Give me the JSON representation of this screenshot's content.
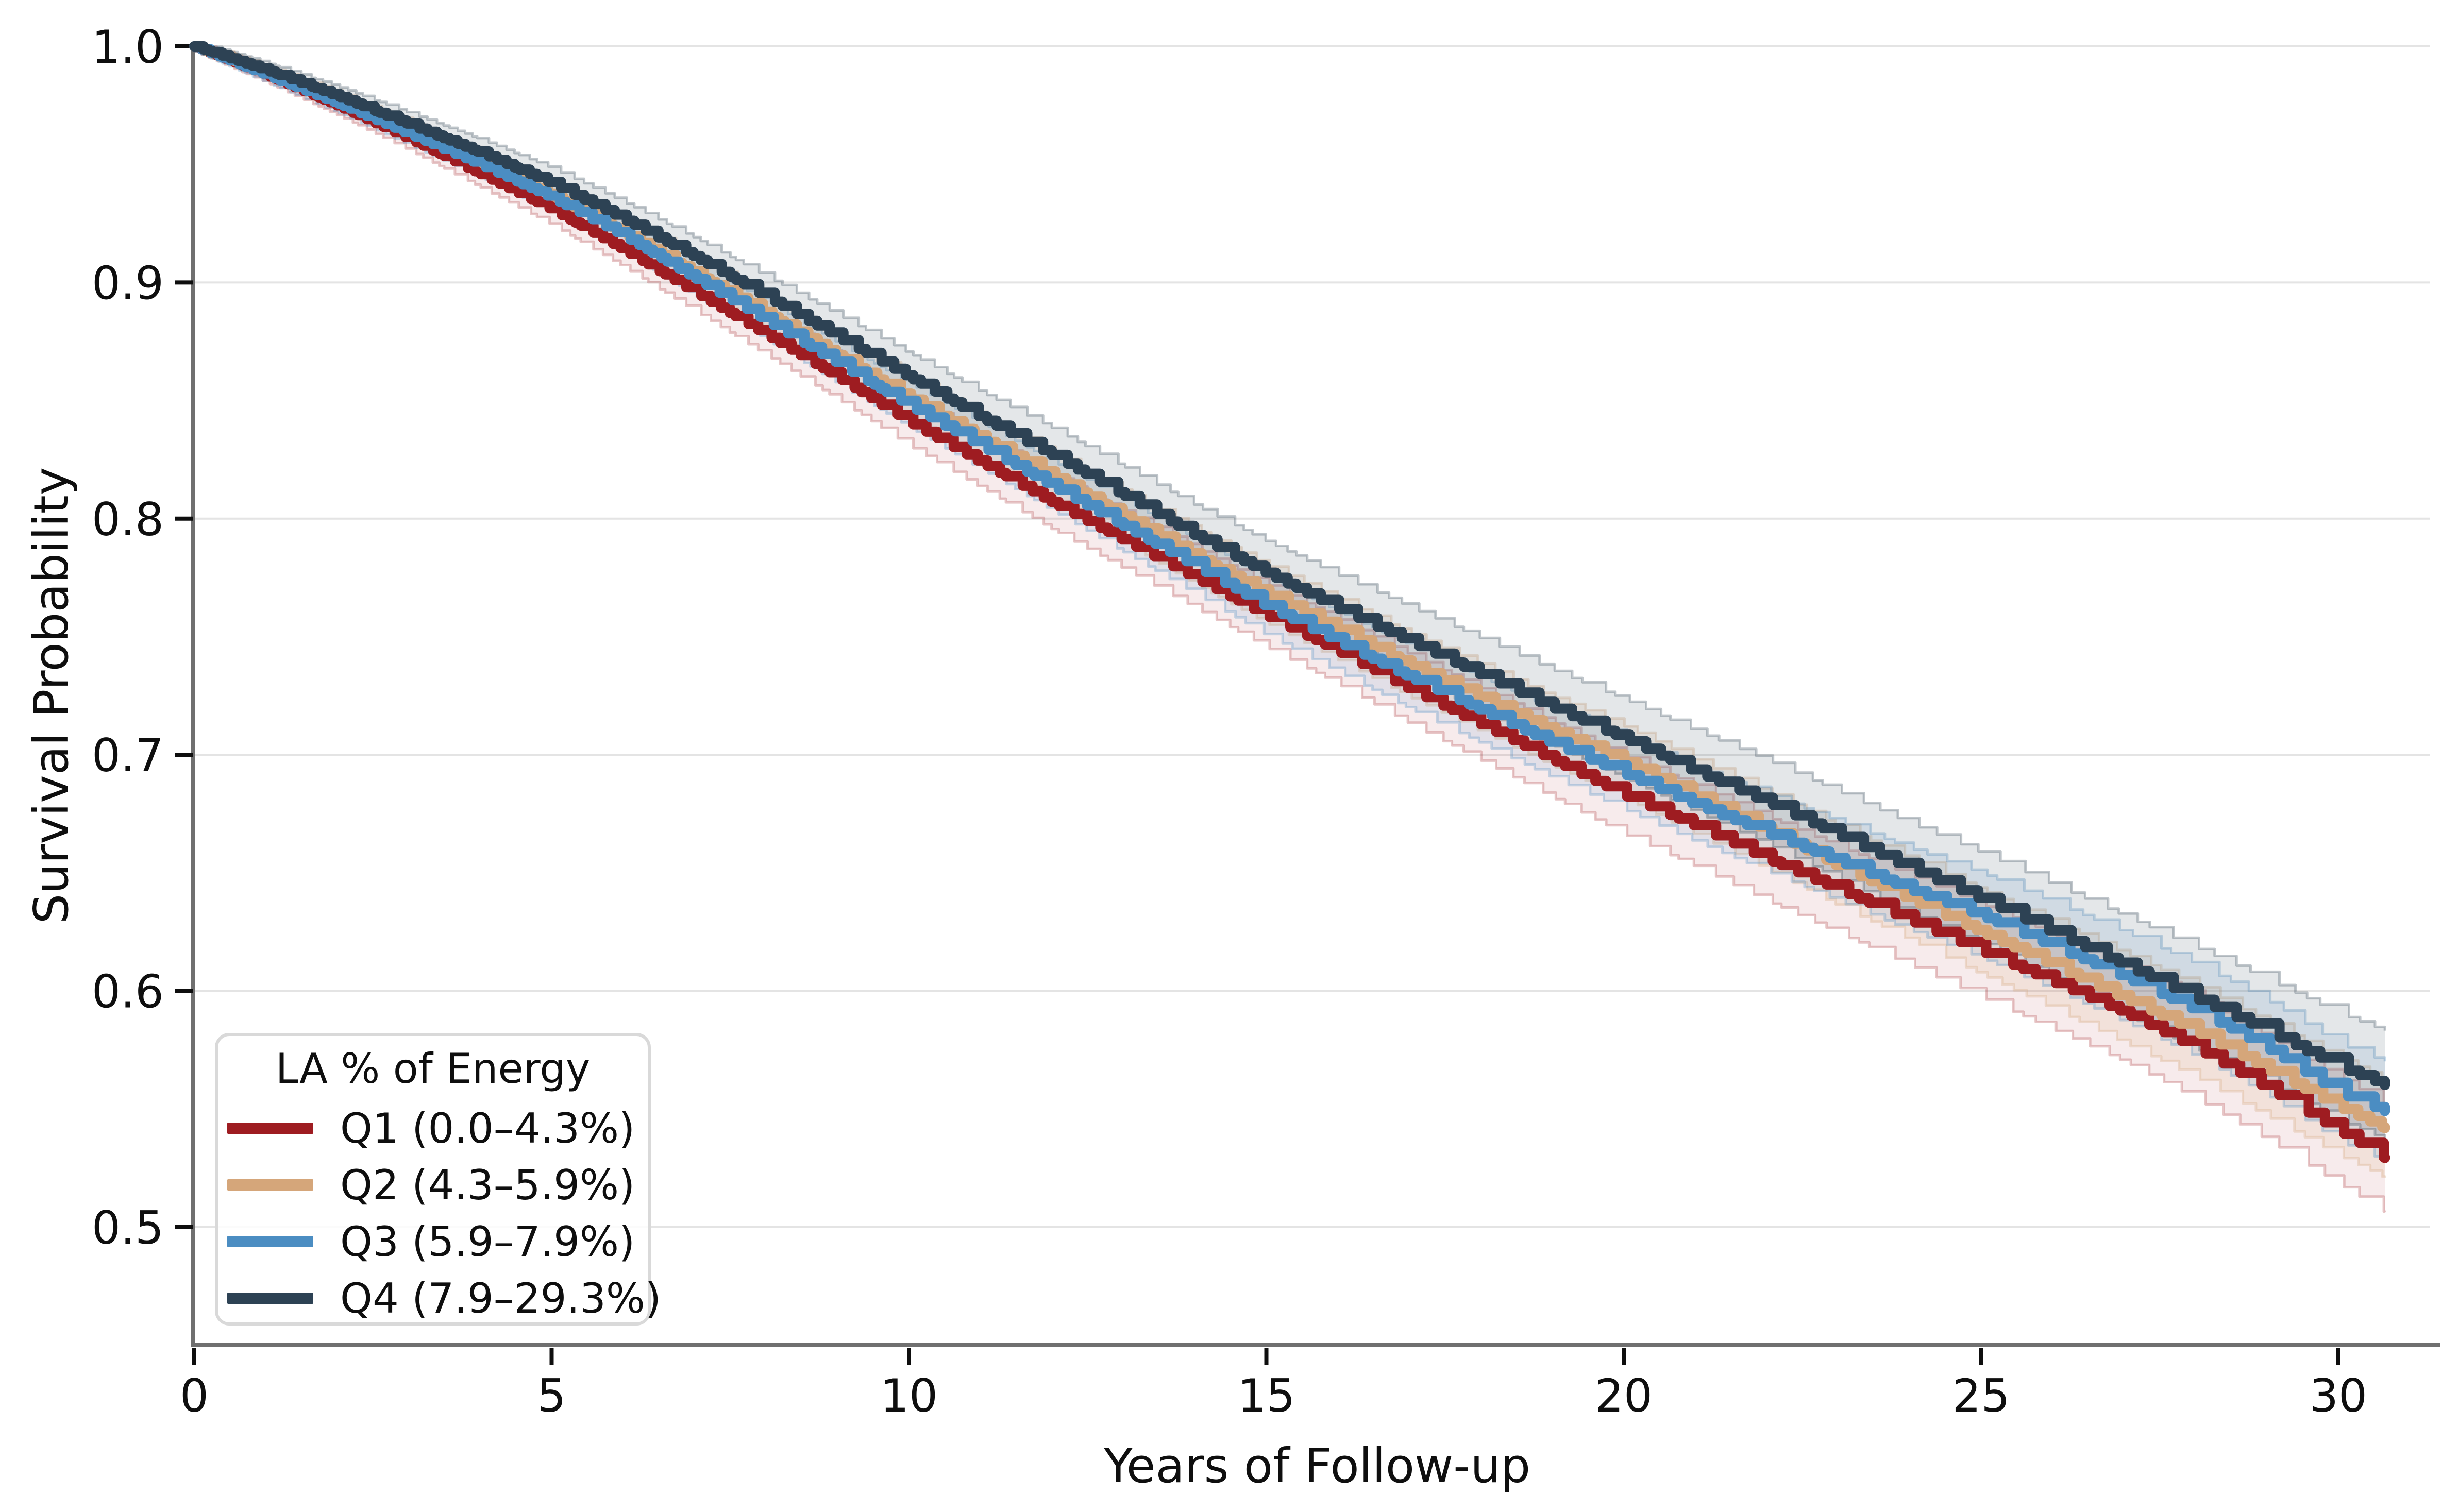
{
  "chart_data": {
    "type": "line",
    "subtype": "kaplan-meier-survival",
    "title": "",
    "xlabel": "Years of Follow-up",
    "ylabel": "Survival Probability",
    "xlim": [
      0,
      31.3
    ],
    "ylim": [
      0.45,
      1.0
    ],
    "grid": "horizontal-only",
    "x_ticks": [
      0,
      5,
      10,
      15,
      20,
      25,
      30
    ],
    "y_ticks": [
      {
        "value": 1.0,
        "label": "1.0"
      },
      {
        "value": 0.9,
        "label": "0.9"
      },
      {
        "value": 0.8,
        "label": "0.8"
      },
      {
        "value": 0.7,
        "label": "0.7"
      },
      {
        "value": 0.6,
        "label": "0.6"
      },
      {
        "value": 0.5,
        "label": "0.5"
      }
    ],
    "legend": {
      "title": "LA % of Energy",
      "position": "lower left",
      "entries": [
        {
          "label": "Q1 (0.0–4.3%)",
          "color": "#9e1c21"
        },
        {
          "label": "Q2 (4.3–5.9%)",
          "color": "#d5a67a"
        },
        {
          "label": "Q3 (5.9–7.9%)",
          "color": "#4b8dc2"
        },
        {
          "label": "Q4 (7.9–29.3%)",
          "color": "#2d4254"
        }
      ]
    },
    "years": [
      0,
      1,
      2,
      3,
      4,
      5,
      6,
      7,
      8,
      9,
      10,
      11,
      12,
      13,
      14,
      15,
      16,
      17,
      18,
      19,
      20,
      21,
      22,
      23,
      24,
      25,
      26,
      27,
      28,
      29,
      30,
      31
    ],
    "follow_up_end_years": 30.65,
    "series": [
      {
        "name": "Q1 (0.0–4.3%)",
        "color": "#9e1c21",
        "band_opacity": 0.085,
        "edge_opacity": 0.25,
        "ci_halfwidth_start": 0.002,
        "ci_halfwidth_end": 0.021,
        "seed": 11,
        "values": [
          1.0,
          0.988,
          0.975,
          0.961,
          0.946,
          0.931,
          0.914,
          0.896,
          0.878,
          0.86,
          0.841,
          0.824,
          0.807,
          0.791,
          0.775,
          0.759,
          0.744,
          0.728,
          0.713,
          0.698,
          0.683,
          0.67,
          0.656,
          0.643,
          0.63,
          0.617,
          0.604,
          0.591,
          0.576,
          0.559,
          0.541,
          0.523
        ]
      },
      {
        "name": "Q2 (4.3–5.9%)",
        "color": "#d5a67a",
        "band_opacity": 0.15,
        "edge_opacity": 0.3,
        "ci_halfwidth_start": 0.002,
        "ci_halfwidth_end": 0.019,
        "seed": 22,
        "values": [
          1.0,
          0.989,
          0.977,
          0.964,
          0.951,
          0.937,
          0.921,
          0.904,
          0.887,
          0.869,
          0.851,
          0.834,
          0.818,
          0.801,
          0.784,
          0.768,
          0.753,
          0.738,
          0.724,
          0.71,
          0.697,
          0.682,
          0.668,
          0.653,
          0.639,
          0.625,
          0.611,
          0.597,
          0.583,
          0.567,
          0.551,
          0.537
        ]
      },
      {
        "name": "Q3 (5.9–7.9%)",
        "color": "#4b8dc2",
        "band_opacity": 0.12,
        "edge_opacity": 0.3,
        "ci_halfwidth_start": 0.002,
        "ci_halfwidth_end": 0.019,
        "seed": 33,
        "values": [
          1.0,
          0.988,
          0.976,
          0.963,
          0.95,
          0.936,
          0.92,
          0.902,
          0.884,
          0.866,
          0.848,
          0.831,
          0.814,
          0.797,
          0.78,
          0.763,
          0.748,
          0.733,
          0.719,
          0.705,
          0.692,
          0.679,
          0.667,
          0.655,
          0.643,
          0.632,
          0.619,
          0.606,
          0.592,
          0.576,
          0.557,
          0.545
        ]
      },
      {
        "name": "Q4 (7.9–29.3%)",
        "color": "#2d4254",
        "band_opacity": 0.13,
        "edge_opacity": 0.3,
        "ci_halfwidth_start": 0.002,
        "ci_halfwidth_end": 0.021,
        "seed": 44,
        "values": [
          1.0,
          0.99,
          0.979,
          0.967,
          0.955,
          0.942,
          0.927,
          0.911,
          0.894,
          0.877,
          0.86,
          0.843,
          0.827,
          0.81,
          0.793,
          0.777,
          0.762,
          0.748,
          0.734,
          0.72,
          0.707,
          0.693,
          0.68,
          0.666,
          0.652,
          0.639,
          0.625,
          0.611,
          0.597,
          0.583,
          0.568,
          0.556
        ]
      }
    ],
    "style": {
      "line_width": 20,
      "grid_color": "#e4e4e4",
      "spine_color": "#6f6f6f",
      "tick_color": "#0e0e0e",
      "tick_label_color": "#0e0e0e",
      "tick_label_size": 88,
      "background": "#ffffff"
    }
  }
}
